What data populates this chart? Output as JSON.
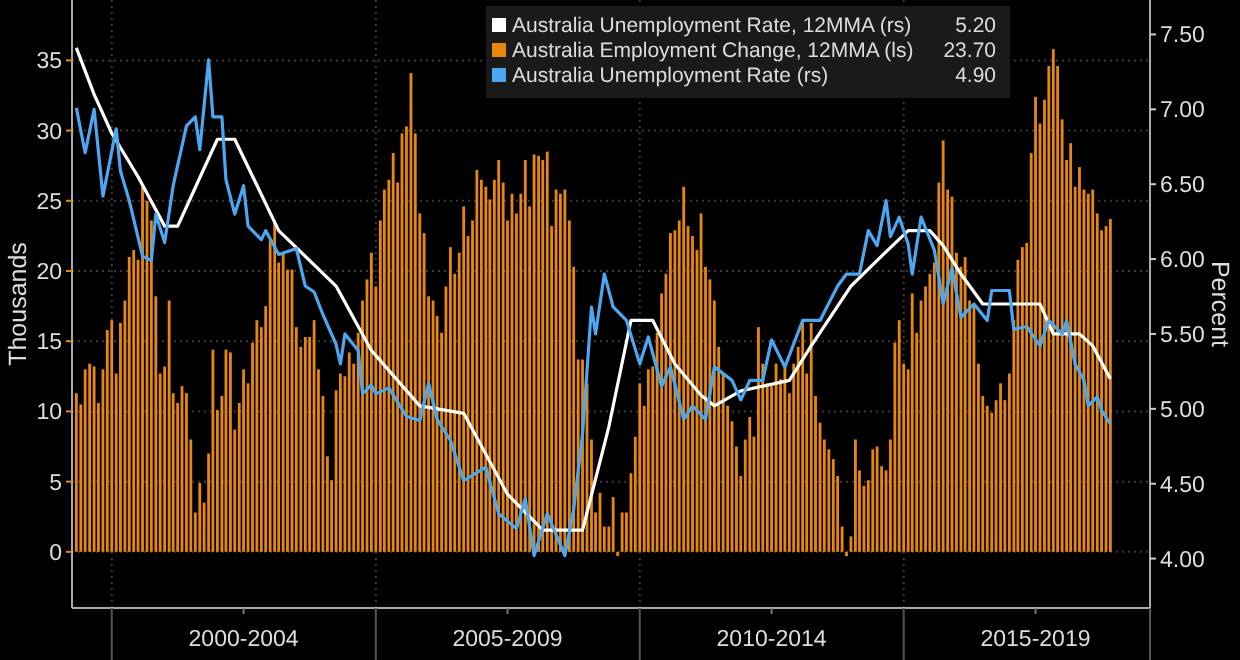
{
  "chart_data": {
    "type": "bar",
    "xlabel": null,
    "ylabel": "Thousands",
    "y2label": "Percent",
    "xlim": [
      "1999-04",
      "2019-09"
    ],
    "xticks": [
      {
        "value": "2000-01",
        "label": null
      },
      {
        "value": "2002-07",
        "label": "2000-2004"
      },
      {
        "value": "2005-01",
        "label": null
      },
      {
        "value": "2007-07",
        "label": "2005-2009"
      },
      {
        "value": "2010-01",
        "label": null
      },
      {
        "value": "2012-07",
        "label": "2010-2014"
      },
      {
        "value": "2015-01",
        "label": null
      },
      {
        "value": "2017-07",
        "label": "2015-2019"
      },
      {
        "value": "2019-09",
        "label": null
      }
    ],
    "ylim": [
      -4,
      39.3
    ],
    "yticks": [
      0,
      5,
      10,
      15,
      20,
      25,
      30,
      35
    ],
    "y2lim": [
      3.67,
      7.73
    ],
    "y2ticks": [
      {
        "value": 4,
        "label": "4.00"
      },
      {
        "value": 4.5,
        "label": "4.50"
      },
      {
        "value": 5,
        "label": "5.00"
      },
      {
        "value": 5.5,
        "label": "5.50"
      },
      {
        "value": 6,
        "label": "6.00"
      },
      {
        "value": 6.5,
        "label": "6.50"
      },
      {
        "value": 7,
        "label": "7.00"
      },
      {
        "value": 7.5,
        "label": "7.50"
      }
    ],
    "grid": true,
    "legend": "top",
    "line_style": "solid",
    "annotations": [
      "5.20",
      "23.70",
      "4.90"
    ],
    "series": [
      {
        "type": "line",
        "axis": "y2",
        "name": "Australia Unemployment Rate, 12MMA (rs)",
        "color": "#ffffff",
        "x": [
          "1999-05",
          "1999-09",
          "2000-01",
          "2000-07",
          "2001-01",
          "2001-04",
          "2002-01",
          "2002-05",
          "2003-03",
          "2004-04",
          "2004-12",
          "2005-11",
          "2006-09",
          "2007-07",
          "2008-03",
          "2008-12",
          "2009-06",
          "2009-11",
          "2010-04",
          "2010-09",
          "2011-03",
          "2011-06",
          "2011-12",
          "2012-11",
          "2013-04",
          "2014-01",
          "2014-08",
          "2015-02",
          "2015-07",
          "2015-10",
          "2016-02",
          "2016-07",
          "2017-08",
          "2017-11",
          "2018-05",
          "2018-08",
          "2018-12"
        ],
        "values": [
          7.41,
          7.1,
          6.84,
          6.55,
          6.22,
          6.22,
          6.8,
          6.8,
          6.19,
          5.82,
          5.39,
          5.02,
          4.97,
          4.43,
          4.19,
          4.19,
          4.88,
          5.59,
          5.59,
          5.3,
          5.09,
          5.02,
          5.12,
          5.19,
          5.42,
          5.82,
          6.02,
          6.19,
          6.19,
          6.09,
          5.9,
          5.7,
          5.7,
          5.5,
          5.5,
          5.42,
          5.2
        ]
      },
      {
        "axis": "y",
        "name": "Australia Employment Change, 12MMA (ls)",
        "color": "#e8870e",
        "x": [
          "1999-05",
          "1999-06",
          "1999-07",
          "1999-08",
          "1999-09",
          "1999-10",
          "1999-11",
          "1999-12",
          "2000-01",
          "2000-02",
          "2000-03",
          "2000-04",
          "2000-05",
          "2000-06",
          "2000-07",
          "2000-08",
          "2000-09",
          "2000-10",
          "2000-11",
          "2000-12",
          "2001-01",
          "2001-02",
          "2001-03",
          "2001-04",
          "2001-05",
          "2001-06",
          "2001-07",
          "2001-08",
          "2001-09",
          "2001-10",
          "2001-11",
          "2001-12",
          "2002-01",
          "2002-02",
          "2002-03",
          "2002-04",
          "2002-05",
          "2002-06",
          "2002-07",
          "2002-08",
          "2002-09",
          "2002-10",
          "2002-11",
          "2002-12",
          "2003-01",
          "2003-02",
          "2003-03",
          "2003-04",
          "2003-05",
          "2003-06",
          "2003-07",
          "2003-08",
          "2003-09",
          "2003-10",
          "2003-11",
          "2003-12",
          "2004-01",
          "2004-02",
          "2004-03",
          "2004-04",
          "2004-05",
          "2004-06",
          "2004-07",
          "2004-08",
          "2004-09",
          "2004-10",
          "2004-11",
          "2004-12",
          "2005-01",
          "2005-02",
          "2005-03",
          "2005-04",
          "2005-05",
          "2005-06",
          "2005-07",
          "2005-08",
          "2005-09",
          "2005-10",
          "2005-11",
          "2005-12",
          "2006-01",
          "2006-02",
          "2006-03",
          "2006-04",
          "2006-05",
          "2006-06",
          "2006-07",
          "2006-08",
          "2006-09",
          "2006-10",
          "2006-11",
          "2006-12",
          "2007-01",
          "2007-02",
          "2007-03",
          "2007-04",
          "2007-05",
          "2007-06",
          "2007-07",
          "2007-08",
          "2007-09",
          "2007-10",
          "2007-11",
          "2007-12",
          "2008-01",
          "2008-02",
          "2008-03",
          "2008-04",
          "2008-05",
          "2008-06",
          "2008-07",
          "2008-08",
          "2008-09",
          "2008-10",
          "2008-11",
          "2008-12",
          "2009-01",
          "2009-02",
          "2009-03",
          "2009-04",
          "2009-05",
          "2009-06",
          "2009-07",
          "2009-08",
          "2009-09",
          "2009-10",
          "2009-11",
          "2009-12",
          "2010-01",
          "2010-02",
          "2010-03",
          "2010-04",
          "2010-05",
          "2010-06",
          "2010-07",
          "2010-08",
          "2010-09",
          "2010-10",
          "2010-11",
          "2010-12",
          "2011-01",
          "2011-02",
          "2011-03",
          "2011-04",
          "2011-05",
          "2011-06",
          "2011-07",
          "2011-08",
          "2011-09",
          "2011-10",
          "2011-11",
          "2011-12",
          "2012-01",
          "2012-02",
          "2012-03",
          "2012-04",
          "2012-05",
          "2012-06",
          "2012-07",
          "2012-08",
          "2012-09",
          "2012-10",
          "2012-11",
          "2012-12",
          "2013-01",
          "2013-02",
          "2013-03",
          "2013-04",
          "2013-05",
          "2013-06",
          "2013-07",
          "2013-08",
          "2013-09",
          "2013-10",
          "2013-11",
          "2013-12",
          "2014-01",
          "2014-02",
          "2014-03",
          "2014-04",
          "2014-05",
          "2014-06",
          "2014-07",
          "2014-08",
          "2014-09",
          "2014-10",
          "2014-11",
          "2014-12",
          "2015-01",
          "2015-02",
          "2015-03",
          "2015-04",
          "2015-05",
          "2015-06",
          "2015-07",
          "2015-08",
          "2015-09",
          "2015-10",
          "2015-11",
          "2015-12",
          "2016-01",
          "2016-02",
          "2016-03",
          "2016-04",
          "2016-05",
          "2016-06",
          "2016-07",
          "2016-08",
          "2016-09",
          "2016-10",
          "2016-11",
          "2016-12",
          "2017-01",
          "2017-02",
          "2017-03",
          "2017-04",
          "2017-05",
          "2017-06",
          "2017-07",
          "2017-08",
          "2017-09",
          "2017-10",
          "2017-11",
          "2017-12",
          "2018-01",
          "2018-02",
          "2018-03",
          "2018-04",
          "2018-05",
          "2018-06",
          "2018-07",
          "2018-08",
          "2018-09",
          "2018-10",
          "2018-11",
          "2018-12"
        ],
        "values": [
          11.3,
          10.5,
          13.0,
          13.4,
          13.2,
          10.6,
          13.0,
          15.8,
          16.5,
          12.7,
          16.3,
          17.9,
          21.0,
          21.5,
          20.8,
          26.0,
          25.0,
          23.6,
          18.2,
          12.7,
          13.2,
          17.9,
          11.3,
          10.6,
          11.8,
          11.3,
          8.0,
          2.8,
          4.9,
          3.5,
          7.0,
          14.4,
          10.1,
          11.1,
          14.4,
          14.2,
          8.7,
          10.6,
          13.0,
          12.0,
          14.9,
          16.5,
          16.0,
          17.5,
          22.2,
          23.6,
          20.6,
          21.3,
          20.1,
          20.1,
          16.0,
          14.6,
          15.3,
          15.3,
          16.5,
          13.0,
          11.1,
          6.8,
          5.1,
          11.5,
          12.7,
          12.5,
          14.2,
          13.4,
          15.6,
          17.9,
          19.4,
          21.3,
          18.9,
          23.6,
          25.8,
          26.5,
          28.4,
          26.3,
          29.8,
          30.3,
          34.1,
          29.8,
          24.1,
          22.7,
          18.2,
          17.9,
          16.8,
          15.6,
          18.9,
          21.7,
          19.8,
          21.3,
          24.6,
          22.5,
          23.6,
          27.2,
          26.5,
          26.0,
          25.1,
          26.5,
          27.9,
          26.3,
          23.6,
          25.5,
          24.1,
          25.5,
          27.9,
          24.6,
          28.3,
          28.2,
          27.9,
          28.5,
          23.2,
          25.8,
          25.5,
          25.8,
          23.6,
          20.3,
          13.7,
          13.7,
          12.0,
          8.0,
          2.8,
          4.2,
          1.8,
          1.8,
          3.9,
          -0.3,
          2.8,
          2.8,
          5.6,
          8.2,
          12.0,
          10.4,
          13.0,
          13.2,
          15.6,
          18.4,
          19.8,
          22.7,
          22.9,
          23.6,
          26.0,
          23.2,
          22.5,
          21.5,
          24.1,
          20.3,
          19.4,
          17.9,
          14.6,
          12.7,
          10.4,
          9.3,
          7.5,
          5.4,
          8.0,
          9.6,
          8.2,
          16.0,
          13.4,
          12.0,
          11.8,
          13.4,
          12.3,
          13.4,
          11.3,
          13.4,
          14.6,
          16.5,
          12.7,
          16.3,
          11.1,
          9.2,
          8.0,
          7.3,
          6.6,
          5.4,
          1.8,
          -0.3,
          1.1,
          8.0,
          5.8,
          4.7,
          5.1,
          7.3,
          7.5,
          6.1,
          5.8,
          8.0,
          14.9,
          16.5,
          13.4,
          13.0,
          18.4,
          15.6,
          17.9,
          18.9,
          19.8,
          20.6,
          26.3,
          29.3,
          25.8,
          25.3,
          21.3,
          20.3,
          21.0,
          17.9,
          17.5,
          13.4,
          11.1,
          10.4,
          9.9,
          10.8,
          12.0,
          10.8,
          12.7,
          16.5,
          20.8,
          21.7,
          22.0,
          28.4,
          32.4,
          30.5,
          32.2,
          34.6,
          35.8,
          34.6,
          30.8,
          27.9,
          29.1,
          26.0,
          27.4,
          25.8,
          25.5,
          25.8,
          24.1,
          22.9,
          23.2,
          23.7
        ]
      },
      {
        "type": "line",
        "axis": "y2",
        "name": "Australia Unemployment Rate (rs)",
        "color": "#4da6f0",
        "x": [
          "1999-05",
          "1999-07",
          "1999-09",
          "1999-11",
          "2000-02",
          "2000-03",
          "2000-05",
          "2000-08",
          "2000-10",
          "2000-11",
          "2001-01",
          "2001-03",
          "2001-06",
          "2001-08",
          "2001-09",
          "2001-11",
          "2001-12",
          "2002-02",
          "2002-03",
          "2002-05",
          "2002-07",
          "2002-08",
          "2002-11",
          "2002-12",
          "2003-03",
          "2003-07",
          "2003-09",
          "2003-11",
          "2004-01",
          "2004-04",
          "2004-05",
          "2004-06",
          "2004-09",
          "2004-10",
          "2004-12",
          "2005-01",
          "2005-04",
          "2005-08",
          "2005-11",
          "2006-01",
          "2006-03",
          "2006-06",
          "2006-09",
          "2007-02",
          "2007-05",
          "2007-09",
          "2007-11",
          "2008-01",
          "2008-04",
          "2008-08",
          "2008-10",
          "2008-12",
          "2009-02",
          "2009-03",
          "2009-05",
          "2009-07",
          "2009-10",
          "2010-01",
          "2010-03",
          "2010-06",
          "2010-08",
          "2010-11",
          "2011-01",
          "2011-04",
          "2011-06",
          "2011-10",
          "2011-12",
          "2012-02",
          "2012-05",
          "2012-07",
          "2012-10",
          "2013-02",
          "2013-06",
          "2013-10",
          "2013-12",
          "2014-03",
          "2014-05",
          "2014-07",
          "2014-09",
          "2014-10",
          "2014-12",
          "2015-02",
          "2015-03",
          "2015-05",
          "2015-08",
          "2015-10",
          "2015-12",
          "2016-02",
          "2016-05",
          "2016-08",
          "2016-09",
          "2017-01",
          "2017-02",
          "2017-05",
          "2017-08",
          "2017-10",
          "2018-01",
          "2018-02",
          "2018-04",
          "2018-06",
          "2018-07",
          "2018-09",
          "2018-10",
          "2018-12"
        ],
        "values": [
          7.01,
          6.71,
          7.0,
          6.42,
          6.87,
          6.59,
          6.39,
          6.02,
          5.99,
          6.3,
          6.11,
          6.49,
          6.89,
          6.95,
          6.73,
          7.33,
          6.95,
          6.95,
          6.53,
          6.3,
          6.49,
          6.22,
          6.13,
          6.19,
          6.03,
          6.07,
          5.82,
          5.78,
          5.63,
          5.43,
          5.3,
          5.5,
          5.39,
          5.1,
          5.16,
          5.1,
          5.14,
          4.95,
          4.92,
          5.17,
          4.93,
          4.79,
          4.52,
          4.61,
          4.3,
          4.2,
          4.4,
          4.02,
          4.3,
          4.02,
          4.33,
          4.83,
          5.68,
          5.5,
          5.9,
          5.68,
          5.59,
          5.3,
          5.48,
          5.15,
          5.28,
          4.93,
          5.02,
          4.93,
          5.28,
          5.19,
          5.06,
          5.19,
          5.19,
          5.46,
          5.28,
          5.59,
          5.59,
          5.82,
          5.9,
          5.9,
          6.19,
          6.09,
          6.39,
          6.15,
          6.28,
          6.1,
          5.9,
          6.28,
          6.06,
          5.7,
          5.94,
          5.61,
          5.7,
          5.59,
          5.79,
          5.79,
          5.53,
          5.55,
          5.42,
          5.59,
          5.5,
          5.59,
          5.3,
          5.19,
          5.02,
          5.08,
          4.99,
          4.9
        ]
      }
    ]
  }
}
